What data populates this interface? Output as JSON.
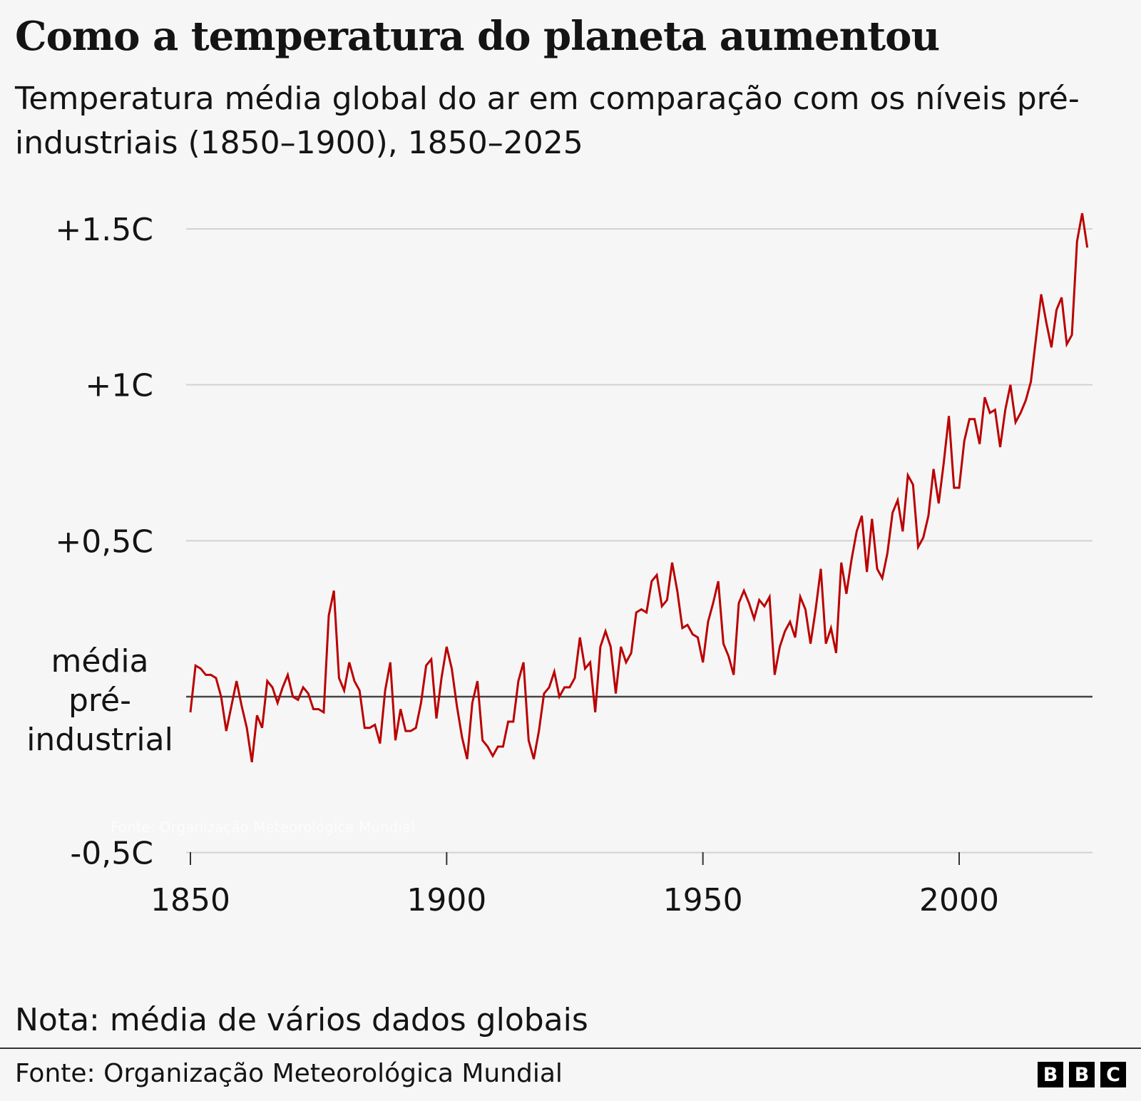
{
  "header": {
    "title": "Como a temperatura do planeta aumentou",
    "subtitle": "Temperatura média global do ar em comparação com os níveis pré-industriais (1850–1900), 1850–2025"
  },
  "footer": {
    "note": "Nota: média de vários dados globais",
    "source": "Fonte: Organização Meteorológica Mundial",
    "logo": [
      "B",
      "B",
      "C"
    ]
  },
  "chart_data": {
    "type": "line",
    "title": "Como a temperatura do planeta aumentou",
    "xlim": [
      1850,
      2025
    ],
    "ylim": [
      -0.5,
      1.5
    ],
    "x_ticks": [
      1850,
      1900,
      1950,
      2000
    ],
    "x_tick_labels": [
      "1850",
      "1900",
      "1950",
      "2000"
    ],
    "y_ticks": [
      -0.5,
      0,
      0.5,
      1,
      1.5
    ],
    "y_tick_labels": [
      "-0,5C",
      "média pré-industrial",
      "+0,5C",
      "+1C",
      "+1.5C"
    ],
    "y_zero_label_lines": [
      "média",
      "pré-",
      "industrial"
    ],
    "grid": true,
    "line_color": "#bb0000",
    "start_year": 1850,
    "series": [
      {
        "values": [
          -0.05,
          0.1,
          0.09,
          0.07,
          0.07,
          0.06,
          0.0,
          -0.11,
          -0.03,
          0.05,
          -0.03,
          -0.1,
          -0.21,
          -0.06,
          -0.1,
          0.05,
          0.03,
          -0.02,
          0.03,
          0.07,
          0.0,
          -0.01,
          0.03,
          0.01,
          -0.04,
          -0.04,
          -0.05,
          0.26,
          0.34,
          0.06,
          0.02,
          0.11,
          0.05,
          0.02,
          -0.1,
          -0.1,
          -0.09,
          -0.15,
          0.02,
          0.11,
          -0.14,
          -0.04,
          -0.11,
          -0.11,
          -0.1,
          -0.02,
          0.1,
          0.12,
          -0.07,
          0.06,
          0.16,
          0.09,
          -0.03,
          -0.13,
          -0.2,
          -0.02,
          0.05,
          -0.14,
          -0.16,
          -0.19,
          -0.16,
          -0.16,
          -0.08,
          -0.08,
          0.05,
          0.11,
          -0.14,
          -0.2,
          -0.11,
          0.01,
          0.03,
          0.08,
          0.0,
          0.03,
          0.03,
          0.06,
          0.19,
          0.09,
          0.11,
          -0.05,
          0.16,
          0.21,
          0.16,
          0.01,
          0.16,
          0.11,
          0.14,
          0.27,
          0.28,
          0.27,
          0.37,
          0.39,
          0.29,
          0.31,
          0.43,
          0.34,
          0.22,
          0.23,
          0.2,
          0.19,
          0.11,
          0.24,
          0.3,
          0.37,
          0.17,
          0.13,
          0.07,
          0.3,
          0.34,
          0.3,
          0.25,
          0.31,
          0.29,
          0.32,
          0.07,
          0.16,
          0.21,
          0.24,
          0.19,
          0.32,
          0.28,
          0.17,
          0.28,
          0.41,
          0.17,
          0.22,
          0.14,
          0.43,
          0.33,
          0.44,
          0.53,
          0.58,
          0.4,
          0.57,
          0.41,
          0.38,
          0.46,
          0.59,
          0.63,
          0.53,
          0.71,
          0.68,
          0.48,
          0.51,
          0.58,
          0.73,
          0.62,
          0.75,
          0.9,
          0.67,
          0.67,
          0.82,
          0.89,
          0.89,
          0.81,
          0.96,
          0.91,
          0.92,
          0.8,
          0.92,
          1.0,
          0.88,
          0.91,
          0.95,
          1.01,
          1.15,
          1.29,
          1.2,
          1.12,
          1.24,
          1.28,
          1.13,
          1.16,
          1.46,
          1.55,
          1.44
        ]
      }
    ]
  }
}
